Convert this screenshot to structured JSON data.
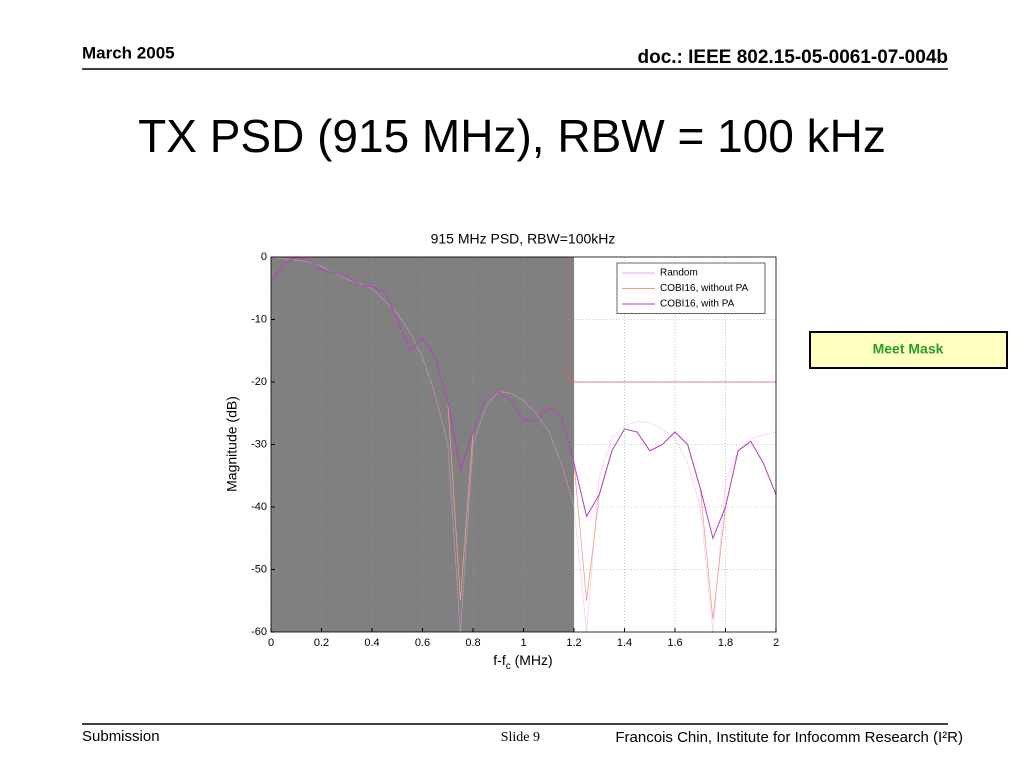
{
  "header": {
    "date": "March 2005",
    "doc": "doc.: IEEE 802.15-05-0061-07-004b"
  },
  "slide_title": "TX PSD (915 MHz), RBW = 100 kHz",
  "annotation": "Meet Mask",
  "footer": {
    "left": "Submission",
    "slide": "Slide 9",
    "author": "Francois Chin, Institute for Infocomm Research (I²R)"
  },
  "chart_data": {
    "type": "line",
    "title": "915 MHz PSD, RBW=100kHz",
    "ylabel": "Magnitude (dB)",
    "xlabel": "f-f",
    "xlabel_sub": "c",
    "xlabel_unit": " (MHz)",
    "xlim": [
      0,
      2
    ],
    "ylim": [
      -60,
      0
    ],
    "xticks": [
      0,
      0.2,
      0.4,
      0.6,
      0.8,
      1,
      1.2,
      1.4,
      1.6,
      1.8,
      2
    ],
    "yticks": [
      0,
      -10,
      -20,
      -30,
      -40,
      -50,
      -60
    ],
    "grid": true,
    "legend": "upper right",
    "x": [
      0,
      0.05,
      0.1,
      0.15,
      0.2,
      0.25,
      0.3,
      0.35,
      0.4,
      0.45,
      0.5,
      0.55,
      0.6,
      0.65,
      0.7,
      0.75,
      0.8,
      0.85,
      0.9,
      0.95,
      1,
      1.05,
      1.1,
      1.15,
      1.2,
      1.25,
      1.3,
      1.35,
      1.4,
      1.45,
      1.5,
      1.55,
      1.6,
      1.65,
      1.7,
      1.75,
      1.8,
      1.85,
      1.9,
      1.95,
      2
    ],
    "series": [
      {
        "name": "Random",
        "color": "#f0a0f0",
        "values": [
          0,
          -0.3,
          -0.5,
          -0.8,
          -1.5,
          -2.5,
          -3.5,
          -4.3,
          -5,
          -7,
          -9,
          -12,
          -16,
          -22,
          -30,
          -60,
          -30,
          -24,
          -21.5,
          -21.8,
          -23,
          -25,
          -28,
          -33,
          -40,
          -60,
          -35,
          -29,
          -27,
          -26.3,
          -26.5,
          -27.5,
          -29,
          -33,
          -40,
          -60,
          -36,
          -31,
          -29,
          -28.5,
          -28
        ]
      },
      {
        "name": "COBI16, without PA",
        "color": "#f0a080",
        "values": [
          -4,
          -1,
          0,
          -0.5,
          -2,
          -2.5,
          -3,
          -4.5,
          -4.8,
          -5.5,
          -10,
          -15,
          -13,
          -16,
          -23,
          -55,
          -28,
          -22.5,
          -21.5,
          -23,
          -26,
          -26.3,
          -24,
          -25.5,
          -33,
          -55,
          -38,
          -31,
          -27.5,
          -28,
          -31,
          -30,
          -28,
          -30,
          -37,
          -58,
          -40,
          -31,
          -29.5,
          -33,
          -38
        ]
      },
      {
        "name": "COBI16, with PA",
        "color": "#b040c0",
        "values": [
          -4,
          -1,
          0,
          -0.5,
          -2,
          -2.5,
          -3,
          -4.5,
          -4.8,
          -5.5,
          -10,
          -15,
          -13,
          -16,
          -23,
          -34,
          -28,
          -22.5,
          -21.5,
          -23,
          -26,
          -26.3,
          -24,
          -25.5,
          -33,
          -41.5,
          -38,
          -31,
          -27.5,
          -28,
          -31,
          -30,
          -28,
          -30,
          -37,
          -45,
          -40,
          -31,
          -29.5,
          -33,
          -38
        ]
      }
    ],
    "mask": {
      "color": "#e06060",
      "x": [
        0,
        1.18,
        1.18,
        2
      ],
      "values": [
        0,
        0,
        -20,
        -20
      ]
    },
    "shaded_region": [
      0,
      1.2
    ],
    "shade_color": "#808080"
  }
}
